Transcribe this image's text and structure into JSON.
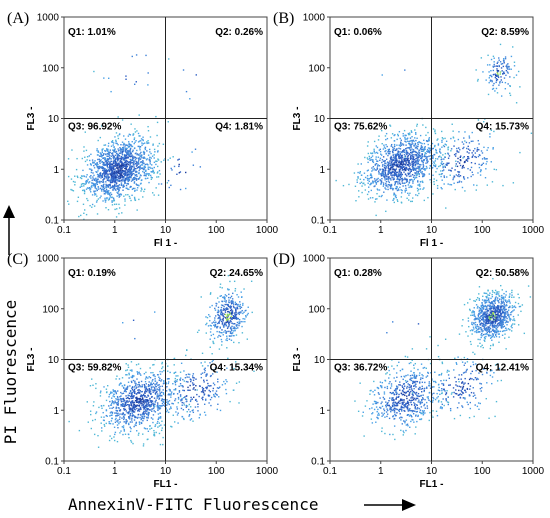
{
  "figure": {
    "x_axis_title": "AnnexinV-FITC Fluorescence",
    "y_axis_title": "PI Fluorescence"
  },
  "chart_data": [
    {
      "type": "scatter",
      "panel_label": "(A)",
      "xlabel": "Fl 1 -",
      "ylabel": "FL3 -",
      "xscale": "log",
      "yscale": "log",
      "xlim": [
        0.1,
        1000
      ],
      "ylim": [
        0.1,
        1000
      ],
      "x_ticks": [
        "0.1",
        "1",
        "10",
        "100",
        "1000"
      ],
      "y_ticks": [
        "0.1",
        "1",
        "10",
        "100",
        "1000"
      ],
      "gate": {
        "x": 10,
        "y": 10
      },
      "quadrants": {
        "Q1": "Q1: 1.01%",
        "Q2": "Q2: 0.26%",
        "Q3": "Q3: 96.92%",
        "Q4": "Q4: 1.81%"
      },
      "populations": [
        {
          "name": "Q3",
          "cx": 1.2,
          "cy": 1.0,
          "sx": 0.35,
          "sy": 0.3,
          "n": 1400
        },
        {
          "name": "Q4",
          "cx": 20,
          "cy": 1.0,
          "sx": 0.25,
          "sy": 0.3,
          "n": 25
        },
        {
          "name": "Q1",
          "cx": 2,
          "cy": 80,
          "sx": 0.3,
          "sy": 0.25,
          "n": 14
        },
        {
          "name": "Q2",
          "cx": 30,
          "cy": 60,
          "sx": 0.2,
          "sy": 0.2,
          "n": 4
        }
      ]
    },
    {
      "type": "scatter",
      "panel_label": "(B)",
      "xlabel": "Fl 1 -",
      "ylabel": "FL3 -",
      "xscale": "log",
      "yscale": "log",
      "xlim": [
        0.1,
        1000
      ],
      "ylim": [
        0.1,
        1000
      ],
      "x_ticks": [
        "0.1",
        "1",
        "10",
        "100",
        "1000"
      ],
      "y_ticks": [
        "0.1",
        "1",
        "10",
        "100",
        "1000"
      ],
      "gate": {
        "x": 10,
        "y": 10
      },
      "quadrants": {
        "Q1": "Q1: 0.06%",
        "Q2": "Q2: 8.59%",
        "Q3": "Q3: 75.62%",
        "Q4": "Q4: 15.73%"
      },
      "populations": [
        {
          "name": "Q3",
          "cx": 2.5,
          "cy": 1.2,
          "sx": 0.38,
          "sy": 0.3,
          "n": 1100
        },
        {
          "name": "Q4",
          "cx": 40,
          "cy": 1.5,
          "sx": 0.35,
          "sy": 0.3,
          "n": 230
        },
        {
          "name": "Q2",
          "cx": 220,
          "cy": 80,
          "sx": 0.15,
          "sy": 0.2,
          "n": 130
        },
        {
          "name": "Q1",
          "cx": 3,
          "cy": 50,
          "sx": 0.3,
          "sy": 0.2,
          "n": 2
        }
      ]
    },
    {
      "type": "scatter",
      "panel_label": "(C)",
      "xlabel": "FL1 -",
      "ylabel": "FL3 -",
      "xscale": "log",
      "yscale": "log",
      "xlim": [
        0.1,
        1000
      ],
      "ylim": [
        0.1,
        1000
      ],
      "x_ticks": [
        "0.1",
        "1",
        "10",
        "100",
        "1000"
      ],
      "y_ticks": [
        "0.1",
        "1",
        "10",
        "100",
        "1000"
      ],
      "gate": {
        "x": 10,
        "y": 10
      },
      "quadrants": {
        "Q1": "Q1: 0.19%",
        "Q2": "Q2: 24.65%",
        "Q3": "Q3: 59.82%",
        "Q4": "Q4: 15.34%"
      },
      "populations": [
        {
          "name": "Q3",
          "cx": 3,
          "cy": 1.5,
          "sx": 0.38,
          "sy": 0.3,
          "n": 900
        },
        {
          "name": "Q4",
          "cx": 40,
          "cy": 2.5,
          "sx": 0.35,
          "sy": 0.3,
          "n": 240
        },
        {
          "name": "Q2",
          "cx": 170,
          "cy": 70,
          "sx": 0.2,
          "sy": 0.25,
          "n": 380
        },
        {
          "name": "Q1",
          "cx": 3,
          "cy": 40,
          "sx": 0.3,
          "sy": 0.2,
          "n": 4
        }
      ]
    },
    {
      "type": "scatter",
      "panel_label": "(D)",
      "xlabel": "FL1 -",
      "ylabel": "FL3 -",
      "xscale": "log",
      "yscale": "log",
      "xlim": [
        0.1,
        1000
      ],
      "ylim": [
        0.1,
        1000
      ],
      "x_ticks": [
        "0.1",
        "1",
        "10",
        "100",
        "1000"
      ],
      "y_ticks": [
        "0.1",
        "1",
        "10",
        "100",
        "1000"
      ],
      "gate": {
        "x": 10,
        "y": 10
      },
      "quadrants": {
        "Q1": "Q1: 0.28%",
        "Q2": "Q2: 50.58%",
        "Q3": "Q3: 36.72%",
        "Q4": "Q4: 12.41%"
      },
      "populations": [
        {
          "name": "Q3",
          "cx": 3,
          "cy": 1.8,
          "sx": 0.35,
          "sy": 0.3,
          "n": 560
        },
        {
          "name": "Q4",
          "cx": 40,
          "cy": 3,
          "sx": 0.35,
          "sy": 0.28,
          "n": 190
        },
        {
          "name": "Q2",
          "cx": 160,
          "cy": 70,
          "sx": 0.22,
          "sy": 0.22,
          "n": 780
        },
        {
          "name": "Q1",
          "cx": 3,
          "cy": 40,
          "sx": 0.3,
          "sy": 0.2,
          "n": 4
        }
      ]
    }
  ]
}
